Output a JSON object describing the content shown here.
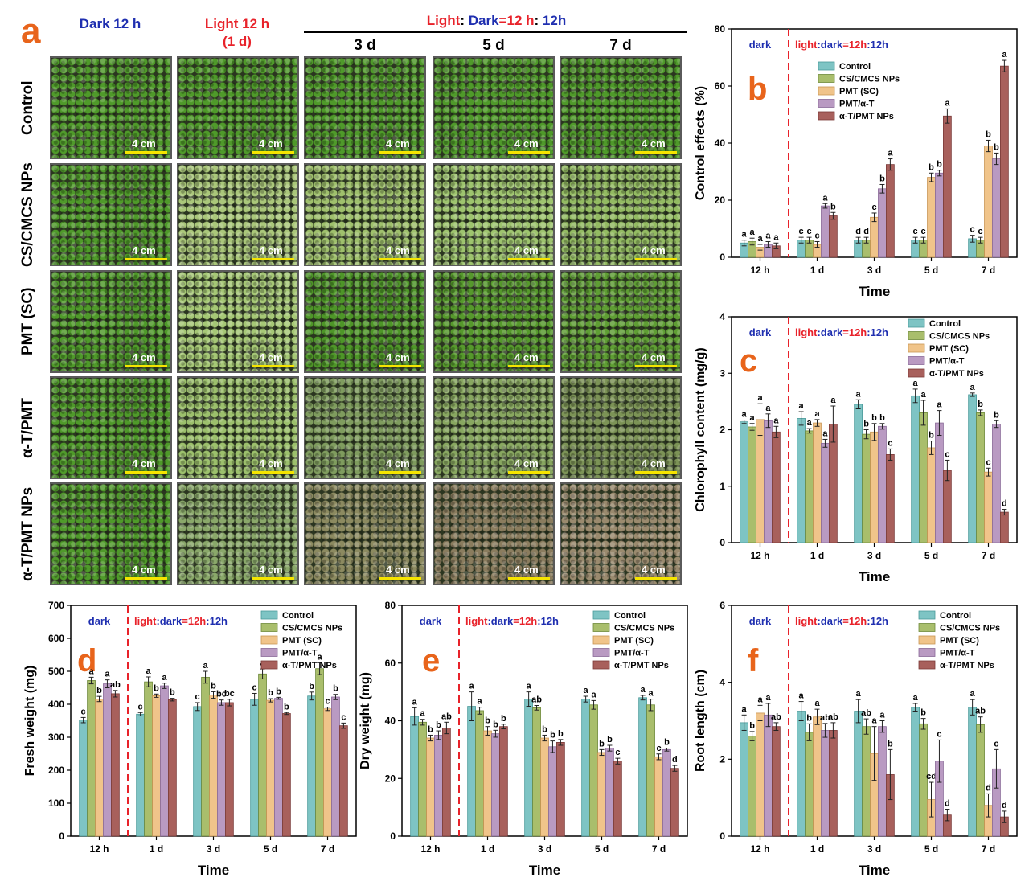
{
  "figure": {
    "panel_a_letter": "a",
    "header_dark": "Dark 12 h",
    "header_light": "Light 12 h",
    "header_light_sub": "(1 d)",
    "header_cycle": {
      "light": "Light",
      "colon": ": ",
      "dark": "Dark",
      "eq": "=",
      "h1": "12 h",
      "colon2": ": ",
      "h2": "12h"
    },
    "days": [
      "3 d",
      "5 d",
      "7 d"
    ],
    "rows": [
      "Control",
      "CS/CMCS NPs",
      "PMT (SC)",
      "α-T/PMT",
      "α-T/PMT NPs"
    ],
    "scale_label": "4 cm",
    "row_tints": [
      [
        "#4f9a2a",
        "#4f9a2a",
        "#4f9a2a",
        "#4f9a2a",
        "#4f9a2a"
      ],
      [
        "#4f9a2a",
        "#aac77a",
        "#9fc06c",
        "#9ec46e",
        "#93bb62"
      ],
      [
        "#4f9a2a",
        "#a6c876",
        "#4e9628",
        "#56992c",
        "#5f9e34"
      ],
      [
        "#4f9a2a",
        "#9cc06c",
        "#7f9c5e",
        "#88a760",
        "#7c9356"
      ],
      [
        "#4f9a2a",
        "#8aa86a",
        "#8c8a60",
        "#8a7c5e",
        "#9a8a6e"
      ]
    ]
  },
  "chart_data": [
    {
      "panel": "b",
      "type": "bar",
      "categories": [
        "12 h",
        "1 d",
        "3 d",
        "5 d",
        "7 d"
      ],
      "xlabel": "Time",
      "ylabel": "Control effects (%)",
      "ylim": [
        0,
        80
      ],
      "yticks": [
        0,
        20,
        40,
        60,
        80
      ],
      "dark_label": "dark",
      "light_label": {
        "a": "light",
        "b": ":",
        "c": "dark",
        "d": "=",
        "e": "12h",
        "f": ":",
        "g": "12h"
      },
      "series": [
        {
          "name": "Control",
          "values": [
            5,
            6,
            6,
            6,
            6.5
          ],
          "err": [
            1,
            1,
            1,
            1,
            1.2
          ],
          "letters": [
            "a",
            "c",
            "d",
            "c",
            "c"
          ]
        },
        {
          "name": "CS/CMCS NPs",
          "values": [
            5.5,
            6,
            6,
            6,
            6
          ],
          "err": [
            1.2,
            1,
            1,
            1,
            1
          ],
          "letters": [
            "a",
            "c",
            "d",
            "c",
            "c"
          ]
        },
        {
          "name": "PMT (SC)",
          "values": [
            3.5,
            4.5,
            14,
            28,
            39
          ],
          "err": [
            1,
            1,
            1.5,
            1.5,
            2
          ],
          "letters": [
            "a",
            "c",
            "c",
            "b",
            "b"
          ]
        },
        {
          "name": "PMT/α-T",
          "values": [
            4.5,
            18,
            24,
            29.5,
            34.5
          ],
          "err": [
            1,
            0.8,
            1.5,
            1,
            2
          ],
          "letters": [
            "a",
            "a",
            "b",
            "b",
            "b"
          ]
        },
        {
          "name": "α-T/PMT NPs",
          "values": [
            4,
            14.5,
            32.5,
            49.5,
            67
          ],
          "err": [
            1,
            1.2,
            2,
            2.5,
            2
          ],
          "letters": [
            "a",
            "b",
            "a",
            "a",
            "a"
          ]
        }
      ]
    },
    {
      "panel": "c",
      "type": "bar",
      "categories": [
        "12 h",
        "1 d",
        "3 d",
        "5 d",
        "7 d"
      ],
      "xlabel": "Time",
      "ylabel": "Chlorophyll content (mg/g)",
      "ylim": [
        0,
        4
      ],
      "yticks": [
        0,
        1,
        2,
        3,
        4
      ],
      "dark_label": "dark",
      "light_label": {
        "a": "light",
        "b": ":",
        "c": "dark",
        "d": "=",
        "e": "12h",
        "f": ":",
        "g": "12h"
      },
      "series": [
        {
          "name": "Control",
          "values": [
            2.14,
            2.2,
            2.45,
            2.6,
            2.62
          ],
          "err": [
            0.03,
            0.12,
            0.08,
            0.12,
            0.03
          ],
          "letters": [
            "a",
            "a",
            "a",
            "a",
            "a"
          ]
        },
        {
          "name": "CS/CMCS NPs",
          "values": [
            2.05,
            1.98,
            1.92,
            2.3,
            2.3
          ],
          "err": [
            0.06,
            0.04,
            0.08,
            0.22,
            0.05
          ],
          "letters": [
            "a",
            "a",
            "b",
            "a",
            "b"
          ]
        },
        {
          "name": "PMT (SC)",
          "values": [
            2.18,
            2.12,
            1.96,
            1.68,
            1.25
          ],
          "err": [
            0.28,
            0.06,
            0.15,
            0.12,
            0.07
          ],
          "letters": [
            "a",
            "a",
            "b",
            "b",
            "c"
          ]
        },
        {
          "name": "PMT/α-T",
          "values": [
            2.16,
            1.76,
            2.06,
            2.12,
            2.1
          ],
          "err": [
            0.12,
            0.07,
            0.05,
            0.22,
            0.06
          ],
          "letters": [
            "a",
            "a",
            "b",
            "a",
            "b"
          ]
        },
        {
          "name": "α-T/PMT NPs",
          "values": [
            1.96,
            2.1,
            1.56,
            1.28,
            0.54
          ],
          "err": [
            0.1,
            0.32,
            0.1,
            0.18,
            0.05
          ],
          "letters": [
            "a",
            "a",
            "c",
            "c",
            "d"
          ]
        }
      ]
    },
    {
      "panel": "d",
      "type": "bar",
      "categories": [
        "12 h",
        "1 d",
        "3 d",
        "5 d",
        "7 d"
      ],
      "xlabel": "Time",
      "ylabel": "Fresh weight (mg)",
      "ylim": [
        0,
        700
      ],
      "yticks": [
        0,
        100,
        200,
        300,
        400,
        500,
        600,
        700
      ],
      "dark_label": "dark",
      "light_label": {
        "a": "light",
        "b": ":",
        "c": "dark",
        "d": "=",
        "e": "12h",
        "f": ":",
        "g": "12h"
      },
      "series": [
        {
          "name": "Control",
          "values": [
            352,
            370,
            393,
            415,
            425
          ],
          "err": [
            8,
            5,
            12,
            18,
            12
          ],
          "letters": [
            "c",
            "c",
            "c",
            "c",
            "b"
          ]
        },
        {
          "name": "CS/CMCS NPs",
          "values": [
            472,
            468,
            482,
            492,
            508
          ],
          "err": [
            10,
            15,
            18,
            15,
            18
          ],
          "letters": [
            "a",
            "a",
            "a",
            "a",
            "a"
          ]
        },
        {
          "name": "PMT (SC)",
          "values": [
            416,
            426,
            428,
            412,
            386
          ],
          "err": [
            8,
            5,
            10,
            5,
            5
          ],
          "letters": [
            "b",
            "b",
            "b",
            "b",
            "c"
          ]
        },
        {
          "name": "PMT/α-T",
          "values": [
            462,
            456,
            405,
            418,
            422
          ],
          "err": [
            12,
            8,
            8,
            3,
            8
          ],
          "letters": [
            "a",
            "a",
            "bc",
            "b",
            "b"
          ]
        },
        {
          "name": "α-T/PMT NPs",
          "values": [
            432,
            414,
            405,
            372,
            335
          ],
          "err": [
            10,
            4,
            10,
            3,
            8
          ],
          "letters": [
            "ab",
            "b",
            "bc",
            "b",
            "c"
          ]
        }
      ]
    },
    {
      "panel": "e",
      "type": "bar",
      "categories": [
        "12 h",
        "1 d",
        "3 d",
        "5 d",
        "7 d"
      ],
      "xlabel": "Time",
      "ylabel": "Dry weight (mg)",
      "ylim": [
        0,
        80
      ],
      "yticks": [
        0,
        20,
        40,
        60,
        80
      ],
      "dark_label": "dark",
      "light_label": {
        "a": "light",
        "b": ":",
        "c": "dark",
        "d": "=",
        "e": "12h",
        "f": ":",
        "g": "12h"
      },
      "series": [
        {
          "name": "Control",
          "values": [
            41.5,
            45,
            47.5,
            47.5,
            48
          ],
          "err": [
            3,
            5,
            2.5,
            1,
            0.8
          ],
          "letters": [
            "a",
            "a",
            "a",
            "a",
            "a"
          ]
        },
        {
          "name": "CS/CMCS NPs",
          "values": [
            39.5,
            43.5,
            44.5,
            45.5,
            45.5
          ],
          "err": [
            1,
            1.2,
            0.8,
            1.5,
            2
          ],
          "letters": [
            "a",
            "a",
            "ab",
            "a",
            "a"
          ]
        },
        {
          "name": "PMT (SC)",
          "values": [
            34,
            36.5,
            34,
            29,
            27.5
          ],
          "err": [
            1,
            1.5,
            1,
            1,
            1
          ],
          "letters": [
            "b",
            "b",
            "b",
            "b",
            "c"
          ]
        },
        {
          "name": "PMT/α-T",
          "values": [
            35,
            35.5,
            31,
            30.5,
            30
          ],
          "err": [
            1.5,
            1.2,
            2,
            1,
            0.5
          ],
          "letters": [
            "b",
            "b",
            "b",
            "b",
            "b"
          ]
        },
        {
          "name": "α-T/PMT NPs",
          "values": [
            37.5,
            38,
            32.5,
            26,
            23.5
          ],
          "err": [
            2,
            0.8,
            1,
            1,
            1
          ],
          "letters": [
            "ab",
            "b",
            "b",
            "c",
            "d"
          ]
        }
      ]
    },
    {
      "panel": "f",
      "type": "bar",
      "categories": [
        "12 h",
        "1 d",
        "3 d",
        "5 d",
        "7 d"
      ],
      "xlabel": "Time",
      "ylabel": "Root length (cm)",
      "ylim": [
        0,
        6
      ],
      "yticks": [
        0,
        2,
        4,
        6
      ],
      "dark_label": "dark",
      "light_label": {
        "a": "light",
        "b": ":",
        "c": "dark",
        "d": "=",
        "e": "12h",
        "f": ":",
        "g": "12h"
      },
      "series": [
        {
          "name": "Control",
          "values": [
            2.95,
            3.25,
            3.25,
            3.35,
            3.35
          ],
          "err": [
            0.2,
            0.25,
            0.3,
            0.1,
            0.2
          ],
          "letters": [
            "a",
            "a",
            "a",
            "a",
            "a"
          ]
        },
        {
          "name": "CS/CMCS NPs",
          "values": [
            2.6,
            2.7,
            2.85,
            2.92,
            2.9
          ],
          "err": [
            0.12,
            0.22,
            0.2,
            0.14,
            0.2
          ],
          "letters": [
            "b",
            "b",
            "ab",
            "b",
            "ab"
          ]
        },
        {
          "name": "PMT (SC)",
          "values": [
            3.2,
            3.1,
            2.15,
            0.95,
            0.8
          ],
          "err": [
            0.2,
            0.2,
            0.7,
            0.45,
            0.3
          ],
          "letters": [
            "a",
            "a",
            "a",
            "cd",
            "d"
          ]
        },
        {
          "name": "PMT/α-T",
          "values": [
            3.15,
            2.75,
            2.85,
            1.95,
            1.75
          ],
          "err": [
            0.3,
            0.18,
            0.15,
            0.55,
            0.5
          ],
          "letters": [
            "a",
            "ab",
            "a",
            "c",
            "c"
          ]
        },
        {
          "name": "α-T/PMT NPs",
          "values": [
            2.85,
            2.75,
            1.6,
            0.55,
            0.5
          ],
          "err": [
            0.1,
            0.2,
            0.65,
            0.15,
            0.15
          ],
          "letters": [
            "ab",
            "ab",
            "b",
            "d",
            "d"
          ]
        }
      ]
    }
  ],
  "colors": {
    "series": [
      "#7ec4c4",
      "#a9be6c",
      "#f0c48a",
      "#b99ac2",
      "#a8605c"
    ],
    "series_dark": [
      "#4a9a9a",
      "#6f8a3a",
      "#c99654",
      "#8a6a98",
      "#7a3a38"
    ],
    "letter_orange": "#e8641b",
    "red": "#e8222a",
    "blue": "#1f2fb0"
  }
}
